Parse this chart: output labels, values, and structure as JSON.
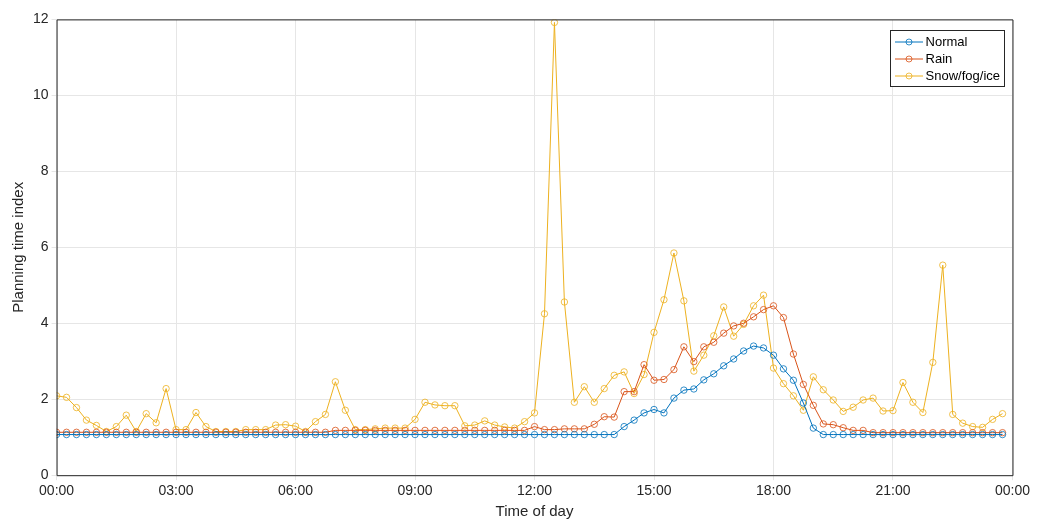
{
  "chart_data": {
    "type": "line",
    "xlabel": "Time of day",
    "ylabel": "Planning time index",
    "x": [
      0,
      0.25,
      0.5,
      0.75,
      1,
      1.25,
      1.5,
      1.75,
      2,
      2.25,
      2.5,
      2.75,
      3,
      3.25,
      3.5,
      3.75,
      4,
      4.25,
      4.5,
      4.75,
      5,
      5.25,
      5.5,
      5.75,
      6,
      6.25,
      6.5,
      6.75,
      7,
      7.25,
      7.5,
      7.75,
      8,
      8.25,
      8.5,
      8.75,
      9,
      9.25,
      9.5,
      9.75,
      10,
      10.25,
      10.5,
      10.75,
      11,
      11.25,
      11.5,
      11.75,
      12,
      12.25,
      12.5,
      12.75,
      13,
      13.25,
      13.5,
      13.75,
      14,
      14.25,
      14.5,
      14.75,
      15,
      15.25,
      15.5,
      15.75,
      16,
      16.25,
      16.5,
      16.75,
      17,
      17.25,
      17.5,
      17.75,
      18,
      18.25,
      18.5,
      18.75,
      19,
      19.25,
      19.5,
      19.75,
      20,
      20.25,
      20.5,
      20.75,
      21,
      21.25,
      21.5,
      21.75,
      22,
      22.25,
      22.5,
      22.75,
      23,
      23.25,
      23.5,
      23.75
    ],
    "series": [
      {
        "name": "Normal",
        "color": "#0072bd",
        "values": [
          1.07,
          1.07,
          1.07,
          1.07,
          1.07,
          1.07,
          1.07,
          1.07,
          1.07,
          1.07,
          1.07,
          1.07,
          1.07,
          1.07,
          1.07,
          1.07,
          1.07,
          1.07,
          1.07,
          1.07,
          1.07,
          1.07,
          1.07,
          1.07,
          1.07,
          1.07,
          1.07,
          1.07,
          1.07,
          1.07,
          1.07,
          1.07,
          1.07,
          1.07,
          1.07,
          1.07,
          1.07,
          1.07,
          1.07,
          1.07,
          1.07,
          1.07,
          1.07,
          1.07,
          1.07,
          1.07,
          1.07,
          1.07,
          1.07,
          1.07,
          1.07,
          1.07,
          1.07,
          1.07,
          1.07,
          1.07,
          1.07,
          1.28,
          1.45,
          1.64,
          1.73,
          1.64,
          2.03,
          2.24,
          2.27,
          2.51,
          2.67,
          2.88,
          3.06,
          3.27,
          3.4,
          3.35,
          3.16,
          2.8,
          2.5,
          1.9,
          1.24,
          1.07,
          1.07,
          1.07,
          1.07,
          1.07,
          1.07,
          1.07,
          1.07,
          1.07,
          1.07,
          1.07,
          1.07,
          1.07,
          1.07,
          1.07,
          1.07,
          1.07,
          1.07,
          1.07
        ]
      },
      {
        "name": "Rain",
        "color": "#d95319",
        "values": [
          1.13,
          1.13,
          1.13,
          1.13,
          1.13,
          1.13,
          1.13,
          1.13,
          1.13,
          1.13,
          1.13,
          1.13,
          1.13,
          1.13,
          1.13,
          1.13,
          1.13,
          1.13,
          1.13,
          1.13,
          1.13,
          1.13,
          1.13,
          1.13,
          1.13,
          1.13,
          1.13,
          1.13,
          1.18,
          1.18,
          1.18,
          1.18,
          1.18,
          1.18,
          1.18,
          1.18,
          1.18,
          1.18,
          1.18,
          1.18,
          1.18,
          1.18,
          1.18,
          1.18,
          1.18,
          1.18,
          1.18,
          1.18,
          1.28,
          1.2,
          1.2,
          1.22,
          1.22,
          1.22,
          1.34,
          1.54,
          1.53,
          2.2,
          2.2,
          2.91,
          2.5,
          2.52,
          2.78,
          3.38,
          2.99,
          3.38,
          3.5,
          3.74,
          3.93,
          4.0,
          4.17,
          4.36,
          4.46,
          4.15,
          3.19,
          2.39,
          1.84,
          1.35,
          1.33,
          1.25,
          1.18,
          1.18,
          1.12,
          1.12,
          1.12,
          1.12,
          1.12,
          1.12,
          1.12,
          1.12,
          1.12,
          1.12,
          1.12,
          1.12,
          1.12,
          1.12
        ]
      },
      {
        "name": "Snow/fog/ice",
        "color": "#edb120",
        "values": [
          2.09,
          2.05,
          1.78,
          1.45,
          1.31,
          1.15,
          1.28,
          1.58,
          1.15,
          1.62,
          1.38,
          2.28,
          1.2,
          1.2,
          1.65,
          1.28,
          1.15,
          1.15,
          1.15,
          1.2,
          1.2,
          1.2,
          1.32,
          1.33,
          1.29,
          1.15,
          1.41,
          1.6,
          2.46,
          1.71,
          1.2,
          1.2,
          1.22,
          1.24,
          1.24,
          1.24,
          1.47,
          1.92,
          1.85,
          1.83,
          1.83,
          1.3,
          1.32,
          1.43,
          1.32,
          1.27,
          1.24,
          1.41,
          1.64,
          4.25,
          11.92,
          4.56,
          1.92,
          2.33,
          1.92,
          2.28,
          2.63,
          2.72,
          2.15,
          2.65,
          3.76,
          4.62,
          5.85,
          4.59,
          2.74,
          3.16,
          3.67,
          4.43,
          3.66,
          3.97,
          4.46,
          4.74,
          2.82,
          2.41,
          2.09,
          1.71,
          2.59,
          2.25,
          1.98,
          1.68,
          1.79,
          1.98,
          2.03,
          1.69,
          1.7,
          2.44,
          1.92,
          1.65,
          2.97,
          5.53,
          1.6,
          1.37,
          1.28,
          1.26,
          1.47,
          1.62
        ]
      }
    ],
    "xlim": [
      0,
      24
    ],
    "xticks": [
      {
        "value": 0,
        "label": "00:00"
      },
      {
        "value": 3,
        "label": "03:00"
      },
      {
        "value": 6,
        "label": "06:00"
      },
      {
        "value": 9,
        "label": "09:00"
      },
      {
        "value": 12,
        "label": "12:00"
      },
      {
        "value": 15,
        "label": "15:00"
      },
      {
        "value": 18,
        "label": "18:00"
      },
      {
        "value": 21,
        "label": "21:00"
      },
      {
        "value": 24,
        "label": "00:00"
      }
    ],
    "ylim": [
      0,
      12
    ],
    "yticks": [
      0,
      2,
      4,
      6,
      8,
      10,
      12
    ],
    "grid": true,
    "legend": "top right",
    "marker": "circle",
    "line_style": "solid"
  }
}
